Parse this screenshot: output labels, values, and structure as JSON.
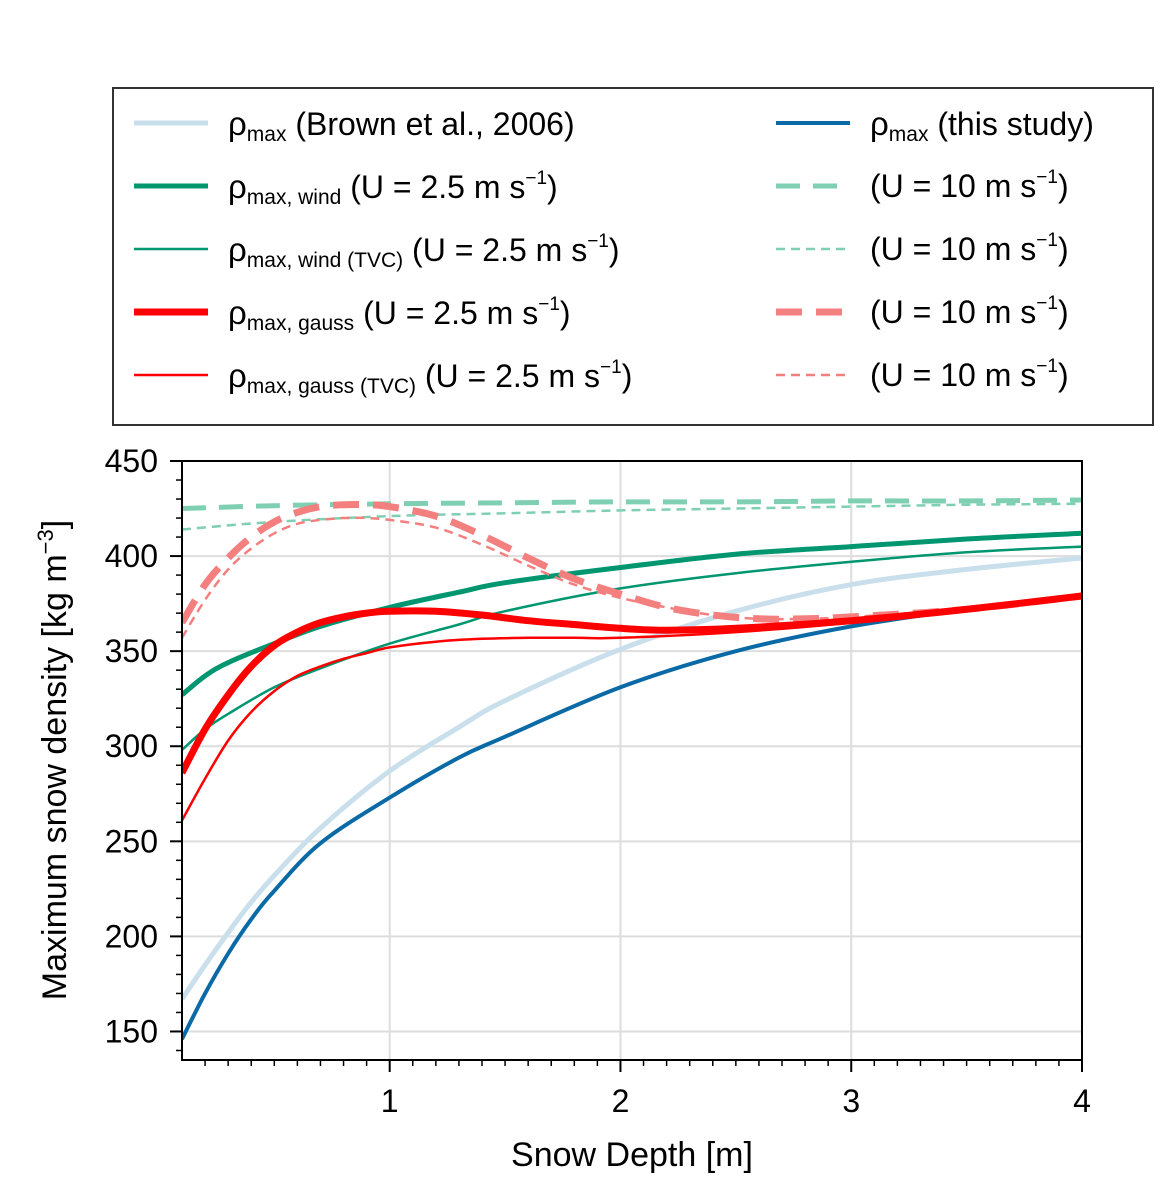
{
  "chart_data": {
    "type": "line",
    "title": "",
    "xlabel": "Snow Depth [m]",
    "ylabel": {
      "text": "Maximum snow density [kg m",
      "sup": "−3",
      "close": "]"
    },
    "xlim": [
      0.1,
      4.0
    ],
    "ylim": [
      135,
      450
    ],
    "x_ticks": [
      "1",
      "2",
      "3",
      "4"
    ],
    "y_ticks": [
      "150",
      "200",
      "250",
      "300",
      "350",
      "400",
      "450"
    ],
    "grid": true,
    "legend_placement": "above plot, two columns",
    "series": [
      {
        "key": "brown",
        "color": "#c9dfec",
        "width": 5,
        "dash": "",
        "label": {
          "sym": "ρ",
          "sub": "max",
          "text": " (Brown et al., 2006)",
          "sup": "",
          "after": ""
        },
        "x": [
          0.1,
          0.2,
          0.3,
          0.4,
          0.5,
          0.7,
          1.0,
          1.3,
          1.5,
          2.0,
          2.5,
          3.0,
          3.5,
          4.0
        ],
        "y": [
          167,
          185,
          202,
          218,
          232,
          257,
          287,
          310,
          324,
          351,
          371,
          385,
          393,
          399
        ]
      },
      {
        "key": "this_study",
        "color": "#0a6aa6",
        "width": 4,
        "dash": "",
        "label": {
          "sym": "ρ",
          "sub": "max",
          "text": " (this study)",
          "sup": "",
          "after": ""
        },
        "x": [
          0.1,
          0.2,
          0.3,
          0.4,
          0.5,
          0.7,
          1.0,
          1.3,
          1.5,
          2.0,
          2.5,
          3.0,
          3.5,
          4.0
        ],
        "y": [
          146,
          170,
          191,
          209,
          224,
          249,
          273,
          294,
          305,
          331,
          350,
          363,
          372,
          379
        ]
      },
      {
        "key": "wind",
        "color": "#009670",
        "width": 5,
        "dash": "",
        "label": {
          "sym": "ρ",
          "sub": "max, wind",
          "text": " (U = 2.5 m s",
          "sup": "−1",
          "after": ")"
        },
        "x": [
          0.1,
          0.2,
          0.3,
          0.5,
          0.7,
          1.0,
          1.3,
          1.5,
          2.0,
          2.5,
          3.0,
          3.5,
          4.0
        ],
        "y": [
          327,
          337,
          344,
          354,
          363,
          373,
          381,
          386,
          394,
          401,
          405,
          409,
          412
        ]
      },
      {
        "key": "wind_10",
        "color": "#7fcfb2",
        "width": 5,
        "dash": "24 13",
        "label": {
          "sym": "",
          "sub": "",
          "text": "(U = 10 m s",
          "sup": "−1",
          "after": ")"
        },
        "x": [
          0.1,
          0.5,
          1.0,
          1.5,
          2.0,
          2.5,
          3.0,
          3.5,
          4.0
        ],
        "y": [
          425,
          426.5,
          427.5,
          428,
          428.5,
          428.5,
          429,
          429,
          429.5
        ]
      },
      {
        "key": "wind_tvc",
        "color": "#009670",
        "width": 2.5,
        "dash": "",
        "label": {
          "sym": "ρ",
          "sub": "max, wind (TVC)",
          "text": " (U = 2.5 m s",
          "sup": "−1",
          "after": ")"
        },
        "x": [
          0.1,
          0.2,
          0.3,
          0.5,
          0.7,
          1.0,
          1.3,
          1.5,
          2.0,
          2.5,
          3.0,
          3.5,
          4.0
        ],
        "y": [
          298,
          309,
          317,
          331,
          341,
          354,
          364,
          371,
          383,
          391,
          397,
          402,
          405
        ]
      },
      {
        "key": "wind_tvc_10",
        "color": "#7fcfb2",
        "width": 2.5,
        "dash": "9 6",
        "label": {
          "sym": "",
          "sub": "",
          "text": "(U = 10 m s",
          "sup": "−1",
          "after": ")"
        },
        "x": [
          0.1,
          0.5,
          1.0,
          1.5,
          2.0,
          2.5,
          3.0,
          3.5,
          4.0
        ],
        "y": [
          414,
          418,
          421,
          422.5,
          424,
          425,
          426,
          427,
          427.5
        ]
      },
      {
        "key": "gauss",
        "color": "#ff0000",
        "width": 7,
        "dash": "",
        "label": {
          "sym": "ρ",
          "sub": "max, gauss",
          "text": " (U = 2.5 m s",
          "sup": "−1",
          "after": ")"
        },
        "x": [
          0.1,
          0.2,
          0.3,
          0.4,
          0.5,
          0.6,
          0.7,
          0.8,
          0.9,
          1.0,
          1.2,
          1.4,
          1.6,
          1.8,
          2.0,
          2.2,
          2.5,
          3.0,
          3.5,
          4.0
        ],
        "y": [
          286,
          309,
          327,
          342,
          353,
          360,
          365,
          368,
          370,
          371,
          371,
          369,
          366,
          364,
          362,
          361,
          362,
          366,
          372,
          379
        ]
      },
      {
        "key": "gauss_10",
        "color": "#f47f7f",
        "width": 7,
        "dash": "26 14",
        "label": {
          "sym": "",
          "sub": "",
          "text": "(U = 10 m s",
          "sup": "−1",
          "after": ")"
        },
        "x": [
          0.1,
          0.2,
          0.3,
          0.4,
          0.5,
          0.6,
          0.7,
          0.8,
          0.9,
          1.0,
          1.2,
          1.4,
          1.6,
          1.8,
          2.0,
          2.2,
          2.4,
          2.6,
          2.8,
          3.0,
          3.5,
          4.0
        ],
        "y": [
          365,
          385,
          399,
          410,
          418,
          423,
          426,
          427,
          427,
          426,
          421,
          411,
          399,
          388,
          380,
          373,
          369,
          367,
          367,
          368,
          372,
          379
        ]
      },
      {
        "key": "gauss_tvc",
        "color": "#ff0000",
        "width": 2.5,
        "dash": "",
        "label": {
          "sym": "ρ",
          "sub": "max, gauss (TVC)",
          "text": " (U = 2.5 m s",
          "sup": "−1",
          "after": ")"
        },
        "x": [
          0.1,
          0.2,
          0.3,
          0.4,
          0.5,
          0.6,
          0.7,
          0.8,
          0.9,
          1.0,
          1.2,
          1.4,
          1.6,
          1.8,
          2.0,
          2.5,
          3.0,
          3.5,
          4.0
        ],
        "y": [
          261,
          283,
          303,
          318,
          329,
          337,
          342,
          346,
          349,
          352,
          355,
          356.5,
          357,
          357,
          357,
          360,
          365,
          372,
          379
        ]
      },
      {
        "key": "gauss_tvc_10",
        "color": "#f47f7f",
        "width": 2.5,
        "dash": "9 6",
        "label": {
          "sym": "",
          "sub": "",
          "text": "(U = 10 m s",
          "sup": "−1",
          "after": ")"
        },
        "x": [
          0.1,
          0.2,
          0.3,
          0.4,
          0.5,
          0.6,
          0.7,
          0.8,
          0.9,
          1.0,
          1.2,
          1.4,
          1.6,
          1.8,
          2.0,
          2.2,
          2.4,
          2.6,
          2.8,
          3.0,
          3.5,
          4.0
        ],
        "y": [
          357,
          377,
          393,
          404,
          412,
          417,
          419,
          420,
          420,
          419,
          415,
          406,
          395,
          385,
          378,
          373,
          369,
          367,
          367,
          368,
          372,
          379
        ]
      }
    ]
  }
}
